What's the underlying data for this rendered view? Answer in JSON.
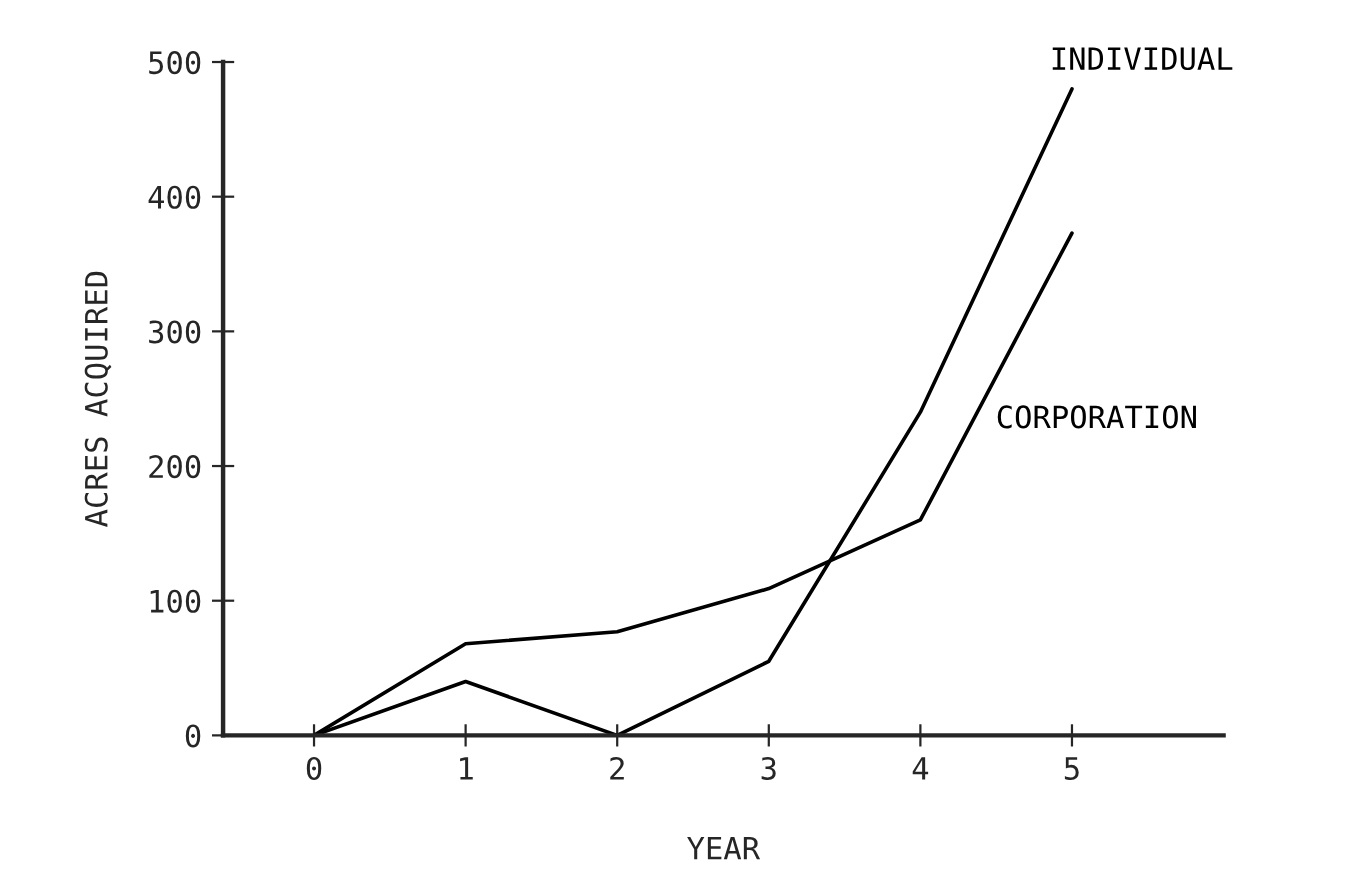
{
  "chart_data": {
    "type": "line",
    "xlabel": "YEAR",
    "ylabel": "ACRES ACQUIRED",
    "x": [
      0,
      1,
      2,
      3,
      4,
      5
    ],
    "series": [
      {
        "name": "INDIVIDUAL",
        "color": "#000000",
        "values": [
          0,
          40,
          0,
          55,
          240,
          480
        ]
      },
      {
        "name": "CORPORATION",
        "color": "#000000",
        "values": [
          0,
          68,
          77,
          109,
          160,
          373
        ]
      }
    ],
    "xlim": [
      -0.6,
      6.0
    ],
    "xticks": [
      0,
      1,
      2,
      3,
      4,
      5
    ],
    "ylim": [
      0,
      500
    ],
    "yticks": [
      0,
      100,
      200,
      300,
      400,
      500
    ],
    "grid": false,
    "legend": false,
    "marker": "none",
    "line_style": "solid"
  }
}
